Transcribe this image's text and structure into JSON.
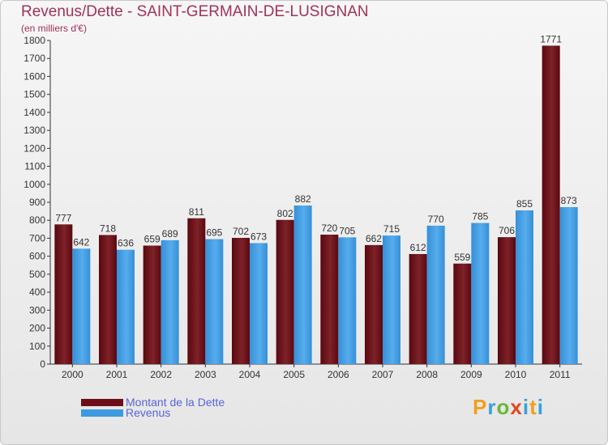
{
  "title": "Revenus/Dette - SAINT-GERMAIN-DE-LUSIGNAN",
  "subtitle": "(en milliers d'€)",
  "logo_text": "Proxiti",
  "colors": {
    "dette": "#6e0f18",
    "revenus": "#3d9ae0",
    "title": "#a0325a",
    "legend_text": "#5a64dc"
  },
  "chart_data": {
    "type": "bar",
    "title": "Revenus/Dette - SAINT-GERMAIN-DE-LUSIGNAN",
    "ylabel": "(en milliers d'€)",
    "xlabel": "",
    "categories": [
      "2000",
      "2001",
      "2002",
      "2003",
      "2004",
      "2005",
      "2006",
      "2007",
      "2008",
      "2009",
      "2010",
      "2011"
    ],
    "series": [
      {
        "name": "Montant de la Dette",
        "values": [
          777,
          718,
          659,
          811,
          702,
          802,
          720,
          662,
          612,
          559,
          706,
          1771
        ]
      },
      {
        "name": "Revenus",
        "values": [
          642,
          636,
          689,
          695,
          673,
          882,
          705,
          715,
          770,
          785,
          855,
          873
        ]
      }
    ],
    "ylim": [
      0,
      1800
    ],
    "yticks": [
      0,
      100,
      200,
      300,
      400,
      500,
      600,
      700,
      800,
      900,
      1000,
      1100,
      1200,
      1300,
      1400,
      1500,
      1600,
      1700,
      1800
    ],
    "grid": false,
    "legend": "bottom-left"
  }
}
